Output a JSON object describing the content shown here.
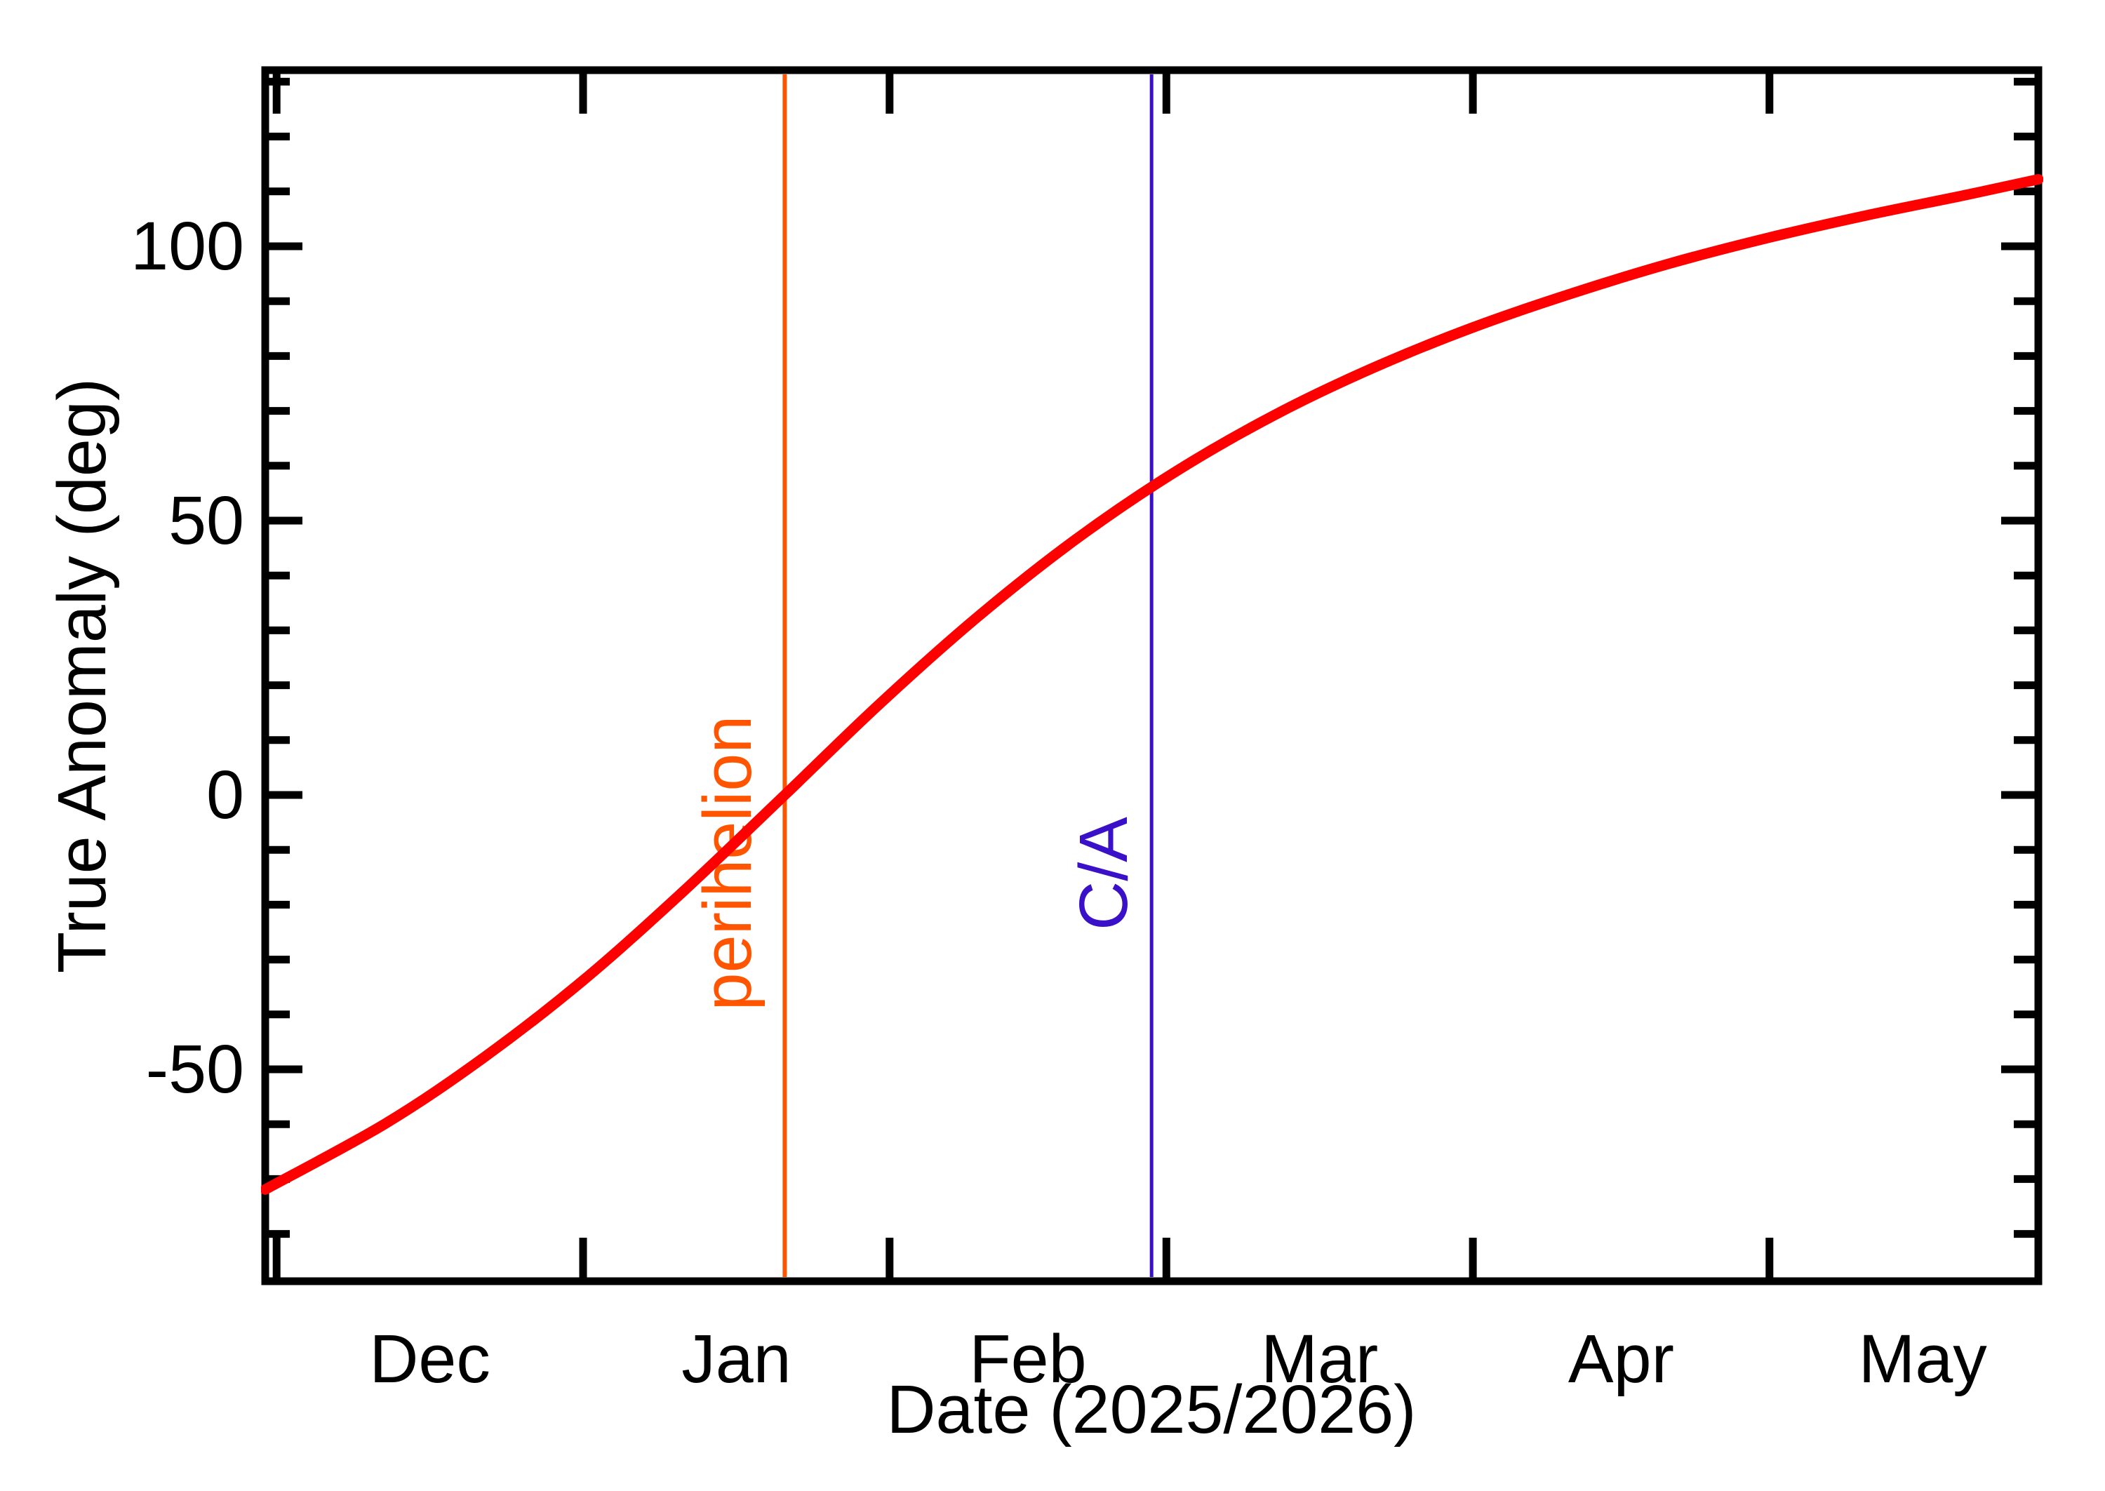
{
  "chart_data": {
    "type": "line",
    "title": "",
    "xlabel": "Date (2025/2026)",
    "ylabel": "True Anomaly (deg)",
    "grid": false,
    "legend": "none",
    "x_axis": {
      "unit": "days since 2025-12-01",
      "domain_days": [
        -1.15,
        178.2
      ],
      "start_date": "2025-11-30",
      "end_date": "2026-05-28",
      "month_tick_days": [
        0,
        31,
        62,
        90,
        121,
        151
      ],
      "month_tick_dates": [
        "Dec 1",
        "Jan 1",
        "Feb 1",
        "Mar 1",
        "Apr 1",
        "May 1"
      ],
      "month_labels": [
        "Dec",
        "Jan",
        "Feb",
        "Mar",
        "Apr",
        "May"
      ],
      "month_label_days": [
        15.5,
        46.5,
        76,
        105.5,
        136,
        166.5
      ]
    },
    "y_axis": {
      "major_ticks": [
        100,
        50,
        0,
        -50
      ],
      "tick_labels": [
        "100",
        "50",
        "0",
        "-50"
      ],
      "minor_tick_step": 10,
      "minor_tick_range": [
        -80,
        130
      ],
      "domain_deg": [
        -89.4,
        132.1
      ]
    },
    "series": [
      {
        "name": "true-anomaly",
        "color": "#ff0000",
        "points": [
          {
            "date": "2025-11-30",
            "day": -1.15,
            "deg": -71.9
          },
          {
            "date": "2025-12-12",
            "day": 11,
            "deg": -59.9
          },
          {
            "date": "2025-12-22",
            "day": 21,
            "deg": -47.8
          },
          {
            "date": "2026-01-01",
            "day": 31,
            "deg": -33.8
          },
          {
            "date": "2026-01-11",
            "day": 41,
            "deg": -17.8
          },
          {
            "date": "2026-01-21",
            "day": 51.4,
            "deg": 0.0
          },
          {
            "date": "2026-01-31",
            "day": 61,
            "deg": 16.6
          },
          {
            "date": "2026-02-10",
            "day": 71,
            "deg": 32.6
          },
          {
            "date": "2026-02-20",
            "day": 81,
            "deg": 46.8
          },
          {
            "date": "2026-03-02",
            "day": 91,
            "deg": 59.0
          },
          {
            "date": "2026-03-12",
            "day": 101,
            "deg": 69.3
          },
          {
            "date": "2026-03-22",
            "day": 111,
            "deg": 77.9
          },
          {
            "date": "2026-04-01",
            "day": 121,
            "deg": 85.2
          },
          {
            "date": "2026-04-11",
            "day": 131,
            "deg": 91.4
          },
          {
            "date": "2026-04-21",
            "day": 141,
            "deg": 96.9
          },
          {
            "date": "2026-05-01",
            "day": 151,
            "deg": 101.6
          },
          {
            "date": "2026-05-11",
            "day": 161,
            "deg": 105.7
          },
          {
            "date": "2026-05-21",
            "day": 171,
            "deg": 109.4
          },
          {
            "date": "2026-05-28",
            "day": 178.2,
            "deg": 112.2
          }
        ]
      }
    ],
    "annotations": [
      {
        "type": "vline",
        "id": "perihelion",
        "label": "perihelion",
        "date": "2026-01-21",
        "day": 51.4,
        "color": "#ff5500"
      },
      {
        "type": "vline",
        "id": "close-approach",
        "label": "C/A",
        "date": "2026-02-27",
        "day": 88.5,
        "color": "#3a10c8"
      }
    ],
    "colors": {
      "curve": "#ff0000",
      "axis": "#000000",
      "background": "#ffffff"
    }
  }
}
